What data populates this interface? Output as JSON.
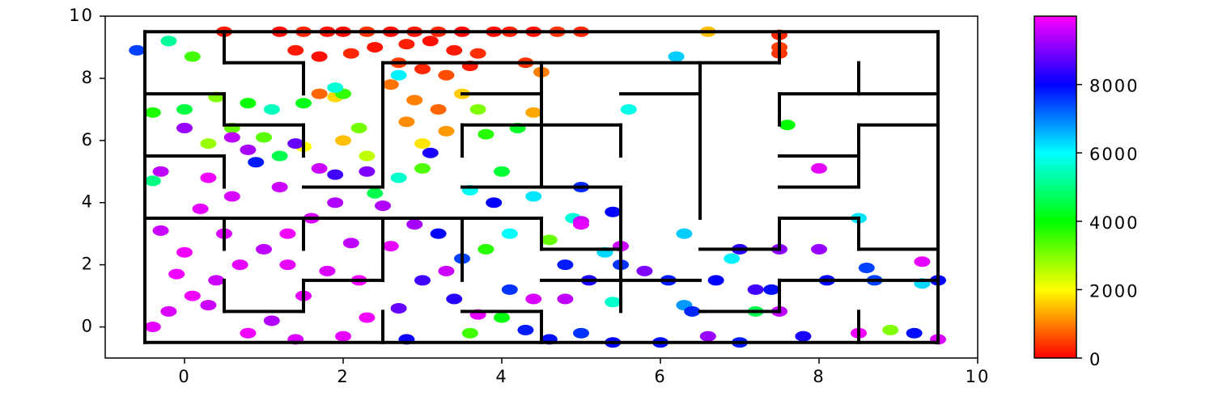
{
  "chart_data": {
    "type": "scatter",
    "xlim": [
      -1,
      10
    ],
    "ylim": [
      -1,
      10
    ],
    "xticks": [
      0,
      2,
      4,
      6,
      8,
      10
    ],
    "yticks": [
      0,
      2,
      4,
      6,
      8,
      10
    ],
    "colorbar": {
      "lim": [
        0,
        10000
      ],
      "ticks": [
        0,
        2000,
        4000,
        6000,
        8000
      ]
    },
    "x": [
      0.5,
      1.2,
      1.5,
      1.8,
      2.0,
      2.3,
      2.6,
      2.9,
      3.2,
      3.5,
      3.9,
      4.1,
      4.4,
      4.7,
      5.0,
      1.4,
      1.7,
      2.1,
      2.4,
      2.8,
      3.1,
      3.4,
      3.7,
      2.7,
      3.0,
      3.3,
      3.6,
      4.3,
      1.7,
      2.6,
      2.9,
      3.2,
      2.8,
      3.3,
      7.5,
      7.5,
      7.5,
      6.6,
      2.0,
      1.5,
      2.3,
      3.0,
      4.5,
      4.4,
      3.5,
      1.9,
      -0.2,
      0.1,
      0.4,
      0.0,
      -0.4,
      0.8,
      1.1,
      0.6,
      1.5,
      2.0,
      1.9,
      1.0,
      0.3,
      1.2,
      2.2,
      3.8,
      4.2,
      3.7,
      3.0,
      4.0,
      2.7,
      3.6,
      4.4,
      4.9,
      4.1,
      3.8,
      4.6,
      5.3,
      6.3,
      6.9,
      6.3,
      5.4,
      4.0,
      3.6,
      2.4,
      -0.4,
      2.7,
      6.2,
      5.6,
      7.6,
      8.9,
      7.2,
      8.5,
      9.3,
      -0.6,
      5.0,
      5.4,
      5.0,
      4.8,
      5.1,
      5.5,
      5.8,
      6.1,
      6.7,
      6.4,
      7.0,
      6.0,
      5.0,
      5.4,
      7.4,
      7.8,
      8.1,
      8.6,
      9.2,
      9.5,
      8.0,
      7.0,
      7.5,
      7.2,
      3.2,
      3.5,
      4.1,
      3.0,
      2.7,
      3.4,
      4.3,
      2.8,
      3.9,
      1.9,
      1.4,
      0.9,
      2.3,
      3.1,
      4.6,
      6.6,
      8.0,
      9.3,
      8.5,
      9.5,
      7.5,
      8.7,
      -0.4,
      -0.2,
      0.1,
      0.4,
      0.7,
      1.0,
      1.3,
      1.6,
      1.9,
      0.2,
      -0.3,
      0.0,
      0.6,
      -0.3,
      0.8,
      0.3,
      1.2,
      1.5,
      1.8,
      2.1,
      2.3,
      2.0,
      1.4,
      0.8,
      0.3,
      1.1,
      2.6,
      2.9,
      3.3,
      3.7,
      4.4,
      4.8,
      2.2,
      1.3,
      0.5,
      -0.1,
      2.5,
      1.7,
      0.0,
      0.6,
      5.0,
      5.5
    ],
    "y": [
      9.5,
      9.5,
      9.5,
      9.5,
      9.5,
      9.5,
      9.5,
      9.5,
      9.5,
      9.5,
      9.5,
      9.5,
      9.5,
      9.5,
      9.5,
      8.9,
      8.7,
      8.8,
      9.0,
      9.1,
      9.2,
      8.9,
      8.8,
      8.5,
      8.3,
      8.1,
      8.4,
      8.5,
      7.5,
      7.8,
      7.3,
      7.0,
      6.6,
      6.3,
      9.4,
      9.0,
      8.8,
      9.5,
      6.0,
      5.8,
      5.5,
      5.9,
      8.2,
      6.9,
      7.5,
      7.4,
      9.2,
      8.7,
      7.4,
      7.0,
      6.9,
      7.2,
      7.0,
      6.4,
      7.2,
      7.5,
      7.7,
      6.1,
      5.9,
      5.5,
      6.4,
      6.2,
      6.4,
      7.0,
      5.1,
      5.0,
      4.8,
      4.4,
      4.2,
      3.5,
      3.0,
      2.5,
      2.8,
      2.4,
      3.0,
      2.2,
      0.7,
      0.8,
      0.3,
      -0.2,
      4.3,
      4.7,
      8.1,
      8.7,
      7.0,
      6.5,
      -0.1,
      0.5,
      3.5,
      1.4,
      8.9,
      4.5,
      3.7,
      3.4,
      2.0,
      1.5,
      2.0,
      1.8,
      1.5,
      1.5,
      0.5,
      -0.5,
      -0.5,
      -0.2,
      -0.5,
      1.2,
      -0.3,
      1.5,
      1.9,
      -0.2,
      1.5,
      2.5,
      2.5,
      2.5,
      1.2,
      3.0,
      2.2,
      1.2,
      1.5,
      0.6,
      0.9,
      -0.1,
      -0.4,
      4.0,
      4.9,
      5.9,
      5.3,
      5.0,
      5.6,
      -0.4,
      -0.3,
      5.1,
      2.1,
      -0.2,
      -0.4,
      0.5,
      1.5,
      0.0,
      0.5,
      1.0,
      1.5,
      2.0,
      2.5,
      3.0,
      3.5,
      4.0,
      3.8,
      3.1,
      2.4,
      4.2,
      5.0,
      5.7,
      4.8,
      4.5,
      1.0,
      1.8,
      2.7,
      0.3,
      -0.3,
      -0.4,
      -0.2,
      0.7,
      0.2,
      2.6,
      3.3,
      1.8,
      0.4,
      0.9,
      0.9,
      1.5,
      2.0,
      3.0,
      1.7,
      3.9,
      5.1,
      6.4,
      6.1,
      3.3,
      2.6
    ],
    "c": [
      200,
      100,
      300,
      150,
      50,
      400,
      100,
      200,
      300,
      50,
      100,
      250,
      150,
      400,
      300,
      200,
      100,
      300,
      150,
      250,
      100,
      200,
      350,
      500,
      300,
      600,
      200,
      400,
      800,
      900,
      1000,
      800,
      1100,
      1200,
      300,
      500,
      400,
      1500,
      1500,
      2000,
      2500,
      1800,
      1000,
      1300,
      1600,
      1700,
      5200,
      3500,
      3000,
      4500,
      3800,
      4000,
      5500,
      3200,
      4200,
      3600,
      5700,
      3300,
      2800,
      4600,
      3100,
      3700,
      4300,
      3000,
      3400,
      4400,
      5600,
      5900,
      6200,
      5700,
      6000,
      3700,
      3200,
      6300,
      6400,
      6100,
      6800,
      5600,
      4100,
      3500,
      4600,
      5000,
      6100,
      6400,
      5800,
      4000,
      3000,
      4600,
      6200,
      6300,
      7500,
      7700,
      8000,
      9600,
      7800,
      8200,
      7600,
      9000,
      7800,
      8000,
      7700,
      7800,
      7900,
      7600,
      8000,
      7900,
      8200,
      8000,
      7500,
      7900,
      8000,
      9200,
      8300,
      9100,
      8500,
      8000,
      7500,
      7600,
      8500,
      8800,
      8300,
      7800,
      8100,
      8000,
      8500,
      8800,
      7800,
      9000,
      8200,
      7900,
      9200,
      9800,
      9800,
      9900,
      9700,
      9500,
      7500,
      9800,
      9700,
      9900,
      9600,
      9800,
      9500,
      9900,
      9700,
      9400,
      9800,
      9600,
      9900,
      9700,
      9500,
      9300,
      9900,
      9600,
      9800,
      9700,
      9500,
      9900,
      9800,
      9700,
      9900,
      9600,
      9400,
      9800,
      9300,
      9600,
      9800,
      9700,
      9500,
      9900,
      9800,
      9700,
      9900,
      9400,
      9600,
      9200,
      9500,
      9800,
      9600
    ],
    "walls": [
      [
        -0.5,
        -0.5,
        -0.5,
        9.5
      ],
      [
        -0.5,
        9.5,
        9.5,
        9.5
      ],
      [
        9.5,
        -0.5,
        9.5,
        9.5
      ],
      [
        -0.5,
        -0.5,
        9.5,
        -0.5
      ],
      [
        0.5,
        8.5,
        0.5,
        9.5
      ],
      [
        0.5,
        8.5,
        1.5,
        8.5
      ],
      [
        1.5,
        7.5,
        1.5,
        8.5
      ],
      [
        2.5,
        8.5,
        7.5,
        8.5
      ],
      [
        2.5,
        4.5,
        2.5,
        8.5
      ],
      [
        -0.5,
        7.5,
        0.5,
        7.5
      ],
      [
        0.5,
        6.5,
        0.5,
        7.5
      ],
      [
        0.5,
        6.5,
        1.5,
        6.5
      ],
      [
        1.5,
        5.5,
        1.5,
        6.5
      ],
      [
        -0.5,
        5.5,
        0.5,
        5.5
      ],
      [
        0.5,
        4.5,
        0.5,
        5.5
      ],
      [
        1.5,
        4.5,
        2.5,
        4.5
      ],
      [
        3.5,
        7.5,
        4.5,
        7.5
      ],
      [
        4.5,
        4.5,
        4.5,
        8.5
      ],
      [
        3.5,
        6.5,
        5.5,
        6.5
      ],
      [
        3.5,
        5.5,
        3.5,
        6.5
      ],
      [
        5.5,
        5.5,
        5.5,
        6.5
      ],
      [
        5.5,
        7.5,
        6.5,
        7.5
      ],
      [
        6.5,
        3.5,
        6.5,
        8.5
      ],
      [
        7.5,
        8.5,
        7.5,
        9.5
      ],
      [
        7.5,
        7.5,
        9.5,
        7.5
      ],
      [
        7.5,
        6.5,
        7.5,
        7.5
      ],
      [
        8.5,
        7.5,
        8.5,
        8.5
      ],
      [
        8.5,
        6.5,
        9.5,
        6.5
      ],
      [
        8.5,
        4.5,
        8.5,
        6.5
      ],
      [
        7.5,
        5.5,
        8.5,
        5.5
      ],
      [
        7.5,
        4.5,
        8.5,
        4.5
      ],
      [
        3.5,
        4.5,
        5.5,
        4.5
      ],
      [
        5.5,
        0.5,
        5.5,
        4.5
      ],
      [
        -0.5,
        3.5,
        4.5,
        3.5
      ],
      [
        2.5,
        1.5,
        2.5,
        3.5
      ],
      [
        1.5,
        2.5,
        1.5,
        3.5
      ],
      [
        0.5,
        2.5,
        0.5,
        3.5
      ],
      [
        3.5,
        1.5,
        3.5,
        3.5
      ],
      [
        4.5,
        2.5,
        4.5,
        3.5
      ],
      [
        4.5,
        2.5,
        5.5,
        2.5
      ],
      [
        1.5,
        1.5,
        2.5,
        1.5
      ],
      [
        1.5,
        0.5,
        1.5,
        1.5
      ],
      [
        0.5,
        0.5,
        1.5,
        0.5
      ],
      [
        0.5,
        0.5,
        0.5,
        1.5
      ],
      [
        4.5,
        1.5,
        6.5,
        1.5
      ],
      [
        3.5,
        0.5,
        4.5,
        0.5
      ],
      [
        4.5,
        -0.5,
        4.5,
        0.5
      ],
      [
        2.5,
        -0.5,
        2.5,
        0.5
      ],
      [
        6.5,
        2.5,
        7.5,
        2.5
      ],
      [
        7.5,
        2.5,
        7.5,
        3.5
      ],
      [
        7.5,
        3.5,
        8.5,
        3.5
      ],
      [
        8.5,
        2.5,
        8.5,
        3.5
      ],
      [
        8.5,
        2.5,
        9.5,
        2.5
      ],
      [
        6.5,
        0.5,
        7.5,
        0.5
      ],
      [
        7.5,
        0.5,
        7.5,
        1.5
      ],
      [
        7.5,
        1.5,
        9.5,
        1.5
      ],
      [
        8.5,
        -0.5,
        8.5,
        0.5
      ]
    ]
  }
}
